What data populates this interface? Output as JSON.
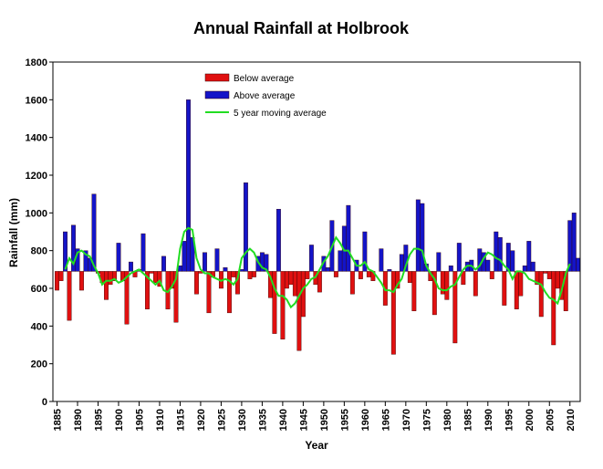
{
  "chart_data": {
    "type": "bar",
    "title": "Annual Rainfall at Holbrook",
    "x_label": "Year",
    "y_label": "Rainfall (mm)",
    "x": [
      1885,
      1886,
      1887,
      1888,
      1889,
      1890,
      1891,
      1892,
      1893,
      1894,
      1895,
      1896,
      1897,
      1898,
      1899,
      1900,
      1901,
      1902,
      1903,
      1904,
      1905,
      1906,
      1907,
      1908,
      1909,
      1910,
      1911,
      1912,
      1913,
      1914,
      1915,
      1916,
      1917,
      1918,
      1919,
      1920,
      1921,
      1922,
      1923,
      1924,
      1925,
      1926,
      1927,
      1928,
      1929,
      1930,
      1931,
      1932,
      1933,
      1934,
      1935,
      1936,
      1937,
      1938,
      1939,
      1940,
      1941,
      1942,
      1943,
      1944,
      1945,
      1946,
      1947,
      1948,
      1949,
      1950,
      1951,
      1952,
      1953,
      1954,
      1955,
      1956,
      1957,
      1958,
      1959,
      1960,
      1961,
      1962,
      1963,
      1964,
      1965,
      1966,
      1967,
      1968,
      1969,
      1970,
      1971,
      1972,
      1973,
      1974,
      1975,
      1976,
      1977,
      1978,
      1979,
      1980,
      1981,
      1982,
      1983,
      1984,
      1985,
      1986,
      1987,
      1988,
      1989,
      1990,
      1991,
      1992,
      1993,
      1994,
      1995,
      1996,
      1997,
      1998,
      1999,
      2000,
      2001,
      2002,
      2003,
      2004,
      2005,
      2006,
      2007,
      2008,
      2009,
      2010,
      2011,
      2012
    ],
    "values": [
      590,
      640,
      900,
      430,
      935,
      810,
      590,
      800,
      760,
      1100,
      680,
      630,
      540,
      620,
      640,
      840,
      640,
      410,
      740,
      660,
      700,
      890,
      490,
      680,
      630,
      610,
      770,
      490,
      600,
      420,
      720,
      850,
      1600,
      870,
      570,
      680,
      790,
      470,
      660,
      810,
      600,
      710,
      470,
      660,
      570,
      700,
      1160,
      650,
      660,
      770,
      790,
      780,
      550,
      360,
      1020,
      330,
      600,
      620,
      560,
      270,
      450,
      650,
      830,
      620,
      580,
      770,
      710,
      960,
      660,
      800,
      930,
      1040,
      570,
      750,
      650,
      900,
      660,
      640,
      690,
      810,
      510,
      700,
      250,
      600,
      780,
      830,
      630,
      480,
      1070,
      1050,
      730,
      640,
      460,
      790,
      570,
      540,
      720,
      310,
      840,
      620,
      740,
      750,
      560,
      810,
      790,
      750,
      650,
      900,
      870,
      510,
      840,
      800,
      490,
      560,
      720,
      850,
      740,
      620,
      450,
      680,
      650,
      300,
      600,
      540,
      480,
      960,
      1000,
      760
    ],
    "average": 690,
    "legend": [
      {
        "name": "Below average",
        "color": "#e01010"
      },
      {
        "name": "Above average",
        "color": "#1414c8"
      }
    ],
    "series": [
      {
        "name": "5 year moving average",
        "color": "#22dd22",
        "values": [
          null,
          null,
          700,
          760,
          730,
          790,
          800,
          780,
          770,
          720,
          680,
          620,
          640,
          640,
          650,
          630,
          640,
          660,
          680,
          690,
          700,
          680,
          660,
          640,
          620,
          640,
          590,
          580,
          610,
          650,
          810,
          900,
          920,
          910,
          760,
          700,
          680,
          680,
          660,
          650,
          640,
          650,
          640,
          620,
          650,
          760,
          790,
          810,
          790,
          740,
          710,
          700,
          660,
          600,
          560,
          560,
          540,
          500,
          520,
          560,
          600,
          620,
          650,
          660,
          700,
          740,
          770,
          820,
          870,
          840,
          800,
          800,
          760,
          720,
          720,
          740,
          700,
          690,
          660,
          630,
          590,
          590,
          580,
          620,
          650,
          720,
          780,
          810,
          810,
          800,
          720,
          680,
          650,
          600,
          590,
          590,
          610,
          620,
          660,
          700,
          720,
          720,
          700,
          720,
          760,
          790,
          780,
          760,
          750,
          720,
          700,
          650,
          690,
          690,
          680,
          650,
          640,
          630,
          620,
          580,
          550,
          540,
          520,
          590,
          680,
          730,
          null,
          null
        ]
      }
    ],
    "xlim": [
      1884,
      2012.5
    ],
    "xticks": [
      1885,
      1890,
      1895,
      1900,
      1905,
      1910,
      1915,
      1920,
      1925,
      1930,
      1935,
      1940,
      1945,
      1950,
      1955,
      1960,
      1965,
      1970,
      1975,
      1980,
      1985,
      1990,
      1995,
      2000,
      2005,
      2010
    ],
    "ylim": [
      0,
      1800
    ],
    "yticks": [
      0,
      200,
      400,
      600,
      800,
      1000,
      1200,
      1400,
      1600,
      1800
    ],
    "grid": false
  }
}
